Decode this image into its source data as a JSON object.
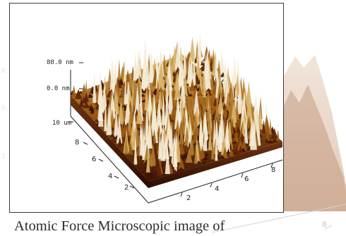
{
  "figure": {
    "z_scale": {
      "top_label": "80.0 nm",
      "zero_label": "0.0 nm"
    },
    "y_axis": {
      "max_label": "10 um",
      "ticks": [
        "8",
        "6",
        "4",
        "2"
      ]
    },
    "x_axis": {
      "ticks": [
        "2",
        "4",
        "6",
        "8"
      ]
    },
    "colors": {
      "low": "#3b1204",
      "mid": "#9a5a14",
      "high": "#d8b46a",
      "peak": "#f4ecd6"
    }
  },
  "ghost": {
    "ticks": [
      "8"
    ]
  },
  "caption": {
    "text": "Atomic Force Microscopic image of"
  }
}
